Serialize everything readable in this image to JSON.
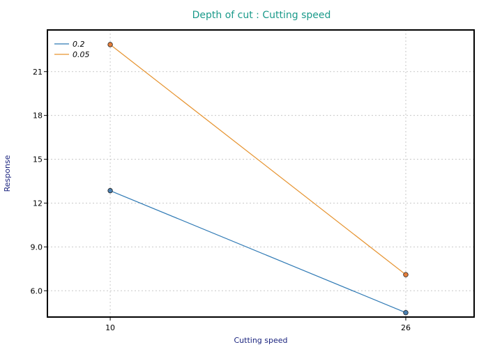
{
  "chart_data": {
    "type": "line",
    "title": "Depth of cut : Cutting speed",
    "xlabel": "Cutting speed",
    "ylabel": "Response",
    "categories": [
      "10",
      "26"
    ],
    "x_positions": [
      10,
      26
    ],
    "xlim": [
      6.6,
      29.7
    ],
    "ylim": [
      4.2,
      23.85
    ],
    "yticks": [
      6.0,
      9.0,
      12.0,
      15.0,
      18.0,
      21.0
    ],
    "ytick_labels": [
      "6.0",
      "9.0",
      "12",
      "15",
      "18",
      "21"
    ],
    "grid": true,
    "legend_position": "top-left",
    "series": [
      {
        "name": "0.2",
        "color": "#2f7ab5",
        "marker_fill": "#4a7fb0",
        "values": [
          12.85,
          4.5
        ]
      },
      {
        "name": "0.05",
        "color": "#e6932f",
        "marker_fill": "#e67e3a",
        "values": [
          22.85,
          7.1
        ]
      }
    ],
    "colors": {
      "title": "#1a9a8a",
      "axis_label": "#1a237e",
      "grid": "#c8c8c8"
    }
  }
}
